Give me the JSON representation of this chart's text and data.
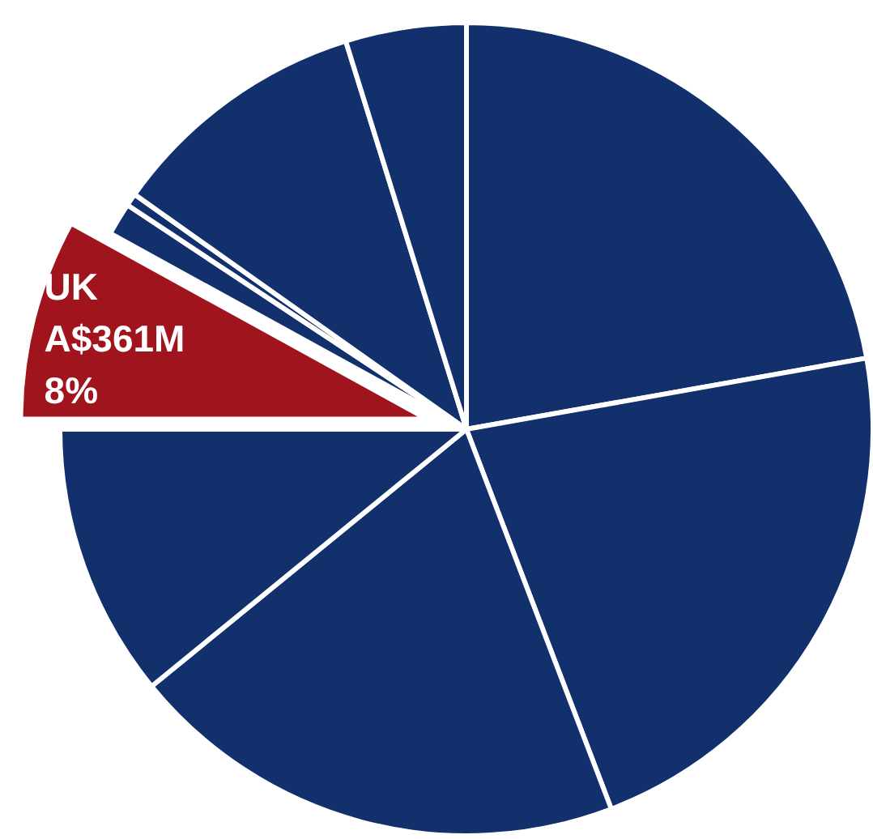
{
  "chart_data": {
    "type": "pie",
    "categories": [
      null,
      null,
      null,
      null,
      "UK",
      null,
      null,
      null,
      null
    ],
    "values": [
      22.2,
      22,
      19.9,
      10.9,
      8,
      1.3,
      0.5,
      10.4,
      4.8
    ],
    "colors": [
      "#12306b",
      "#12306b",
      "#12306b",
      "#12306b",
      "#a0141e",
      "#12306b",
      "#12306b",
      "#12306b",
      "#12306b"
    ],
    "value_labels": [
      null,
      null,
      null,
      null,
      "A$361M\n8%",
      null,
      null,
      null,
      null
    ]
  }
}
